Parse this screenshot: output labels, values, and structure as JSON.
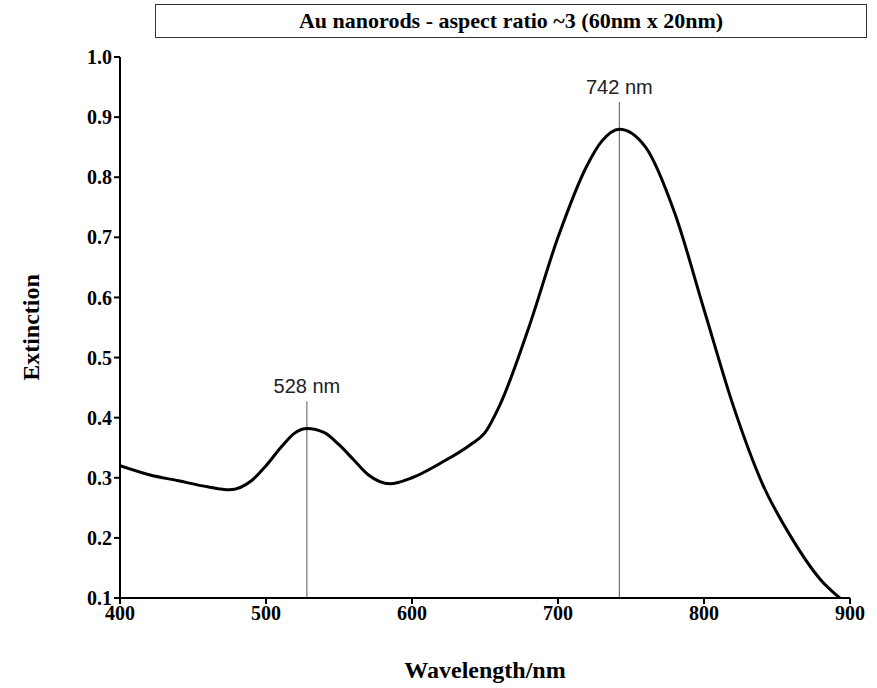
{
  "chart_data": {
    "type": "line",
    "title": "Au nanorods - aspect ratio ~3 (60nm x 20nm)",
    "x_label": "Wavelength/nm",
    "y_label": "Extinction",
    "x": [
      400,
      420,
      440,
      460,
      475,
      490,
      500,
      510,
      520,
      528,
      540,
      550,
      560,
      570,
      585,
      600,
      620,
      640,
      650,
      660,
      680,
      700,
      720,
      730,
      742,
      760,
      780,
      800,
      820,
      840,
      860,
      880,
      893
    ],
    "values": [
      0.32,
      0.305,
      0.295,
      0.285,
      0.28,
      0.295,
      0.32,
      0.35,
      0.375,
      0.382,
      0.375,
      0.355,
      0.33,
      0.305,
      0.29,
      0.3,
      0.325,
      0.355,
      0.375,
      0.42,
      0.55,
      0.7,
      0.82,
      0.86,
      0.88,
      0.85,
      0.74,
      0.58,
      0.42,
      0.29,
      0.2,
      0.13,
      0.1
    ],
    "color": "#000000",
    "xlim": [
      400,
      900
    ],
    "xticks": [
      400,
      500,
      600,
      700,
      800,
      900
    ],
    "ylim": [
      0.1,
      1
    ],
    "yticks": [
      0.1,
      0.2,
      0.3,
      0.4,
      0.5,
      0.6,
      0.7,
      0.8,
      0.9,
      {
        "value": 1,
        "label": "1.0"
      }
    ],
    "grid": false,
    "annotations": [
      {
        "text": "528 nm",
        "x": 528
      },
      {
        "text": "742 nm",
        "x": 742
      }
    ]
  }
}
